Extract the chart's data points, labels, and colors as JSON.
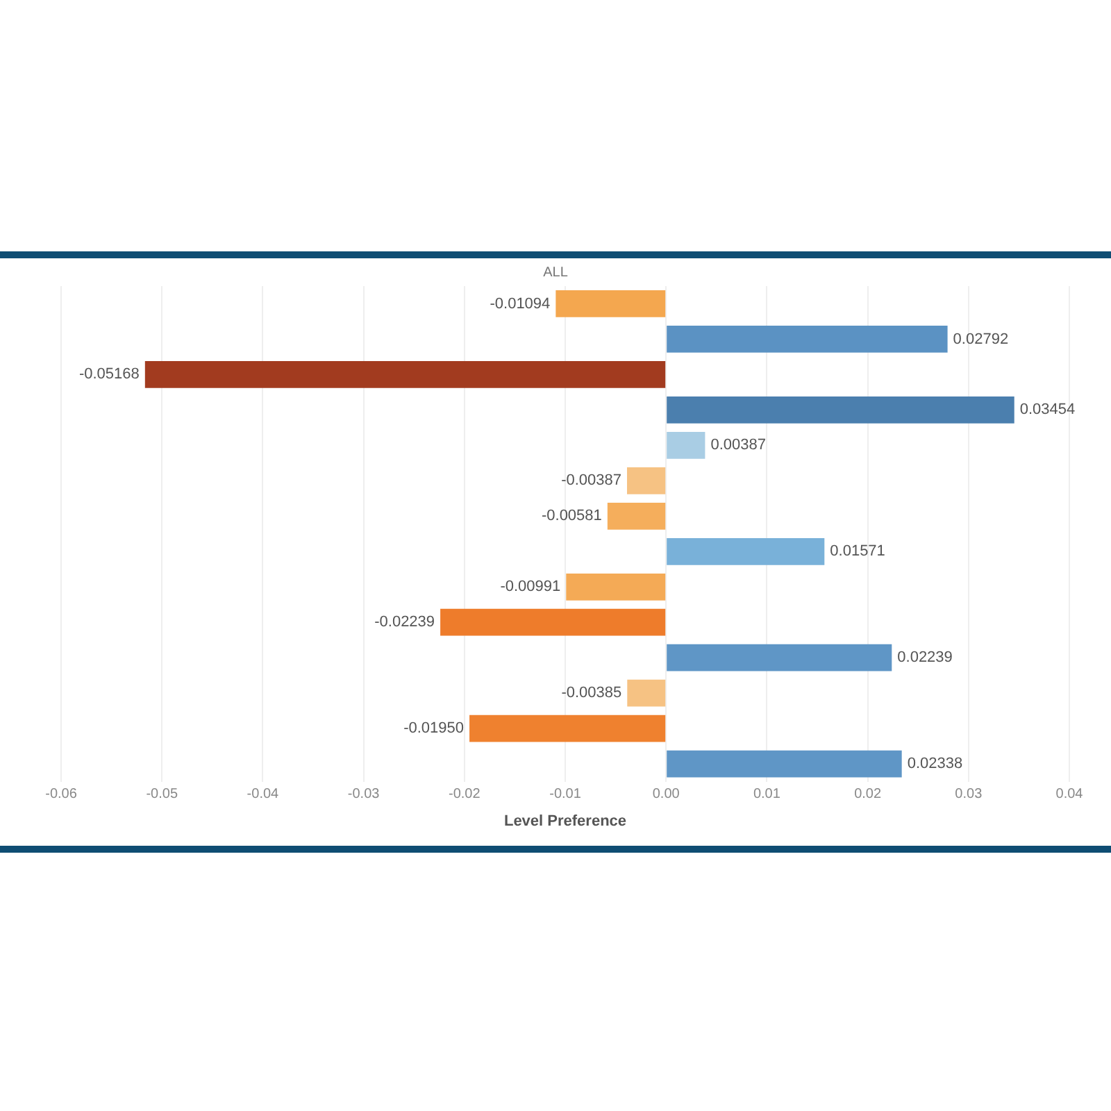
{
  "chart_data": {
    "type": "bar",
    "orientation": "horizontal",
    "title": "ALL",
    "xlabel": "Level Preference",
    "categories": [
      null,
      null,
      null,
      null,
      null,
      null,
      null,
      null,
      null,
      null,
      null,
      null,
      null,
      null
    ],
    "values": [
      -0.01094,
      0.02792,
      -0.05168,
      0.03454,
      0.00387,
      -0.00387,
      -0.00581,
      0.01571,
      -0.00991,
      -0.02239,
      0.02239,
      -0.00385,
      -0.0195,
      0.02338
    ],
    "value_labels": [
      "-0.01094",
      "0.02792",
      "-0.05168",
      "0.03454",
      "0.00387",
      "-0.00387",
      "-0.00581",
      "0.01571",
      "-0.00991",
      "-0.02239",
      "0.02239",
      "-0.00385",
      "-0.01950",
      "0.02338"
    ],
    "colors": [
      "#f4a74f",
      "#5b92c3",
      "#a23b1f",
      "#4b7fae",
      "#a9cde4",
      "#f6c283",
      "#f5ae5c",
      "#79b1d9",
      "#f4aa56",
      "#ee7c2b",
      "#5f96c6",
      "#f6c283",
      "#ef812f",
      "#5f96c6"
    ],
    "xlim": [
      -0.06,
      0.04
    ],
    "xticks": [
      {
        "value": -0.06,
        "label": "-0.06"
      },
      {
        "value": -0.05,
        "label": "-0.05"
      },
      {
        "value": -0.04,
        "label": "-0.04"
      },
      {
        "value": -0.03,
        "label": "-0.03"
      },
      {
        "value": -0.02,
        "label": "-0.02"
      },
      {
        "value": -0.01,
        "label": "-0.01"
      },
      {
        "value": 0,
        "label": "0.00"
      },
      {
        "value": 0.01,
        "label": "0.01"
      },
      {
        "value": 0.02,
        "label": "0.02"
      },
      {
        "value": 0.03,
        "label": "0.03"
      },
      {
        "value": 0.04,
        "label": "0.04"
      }
    ],
    "grid": "x",
    "legend": false
  }
}
